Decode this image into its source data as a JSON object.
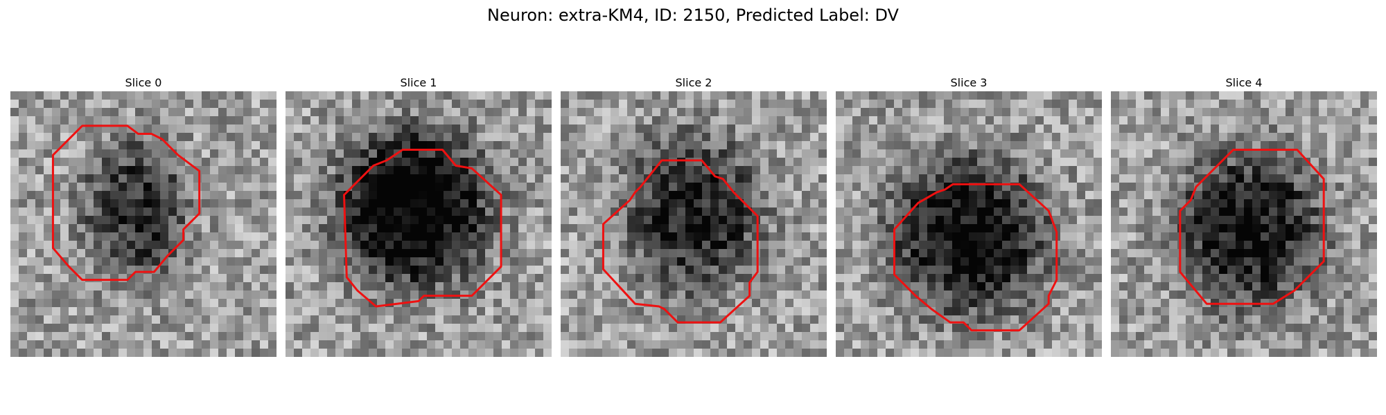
{
  "figure": {
    "title": "Neuron: extra-KM4, ID: 2150, Predicted Label: DV"
  },
  "contour_color": "#ee1111",
  "panels": [
    {
      "title": "Slice 0",
      "dark_center": [
        0.47,
        0.45
      ],
      "dark_radius": [
        0.2,
        0.27
      ],
      "darkness": 0.45,
      "seed": 11,
      "contour": [
        [
          0.27,
          0.13
        ],
        [
          0.44,
          0.13
        ],
        [
          0.48,
          0.16
        ],
        [
          0.53,
          0.16
        ],
        [
          0.57,
          0.18
        ],
        [
          0.63,
          0.24
        ],
        [
          0.71,
          0.3
        ],
        [
          0.71,
          0.46
        ],
        [
          0.65,
          0.52
        ],
        [
          0.65,
          0.56
        ],
        [
          0.59,
          0.62
        ],
        [
          0.54,
          0.68
        ],
        [
          0.47,
          0.68
        ],
        [
          0.44,
          0.71
        ],
        [
          0.27,
          0.71
        ],
        [
          0.22,
          0.66
        ],
        [
          0.16,
          0.59
        ],
        [
          0.16,
          0.24
        ]
      ]
    },
    {
      "title": "Slice 1",
      "dark_center": [
        0.48,
        0.44
      ],
      "dark_radius": [
        0.29,
        0.3
      ],
      "darkness": 0.7,
      "seed": 23,
      "contour": [
        [
          0.38,
          0.26
        ],
        [
          0.44,
          0.22
        ],
        [
          0.59,
          0.22
        ],
        [
          0.64,
          0.28
        ],
        [
          0.7,
          0.29
        ],
        [
          0.81,
          0.39
        ],
        [
          0.81,
          0.66
        ],
        [
          0.7,
          0.77
        ],
        [
          0.52,
          0.77
        ],
        [
          0.5,
          0.79
        ],
        [
          0.34,
          0.81
        ],
        [
          0.27,
          0.75
        ],
        [
          0.23,
          0.7
        ],
        [
          0.22,
          0.39
        ],
        [
          0.33,
          0.28
        ]
      ]
    },
    {
      "title": "Slice 2",
      "dark_center": [
        0.5,
        0.46
      ],
      "dark_radius": [
        0.26,
        0.3
      ],
      "darkness": 0.5,
      "seed": 37,
      "contour": [
        [
          0.38,
          0.26
        ],
        [
          0.53,
          0.26
        ],
        [
          0.58,
          0.32
        ],
        [
          0.61,
          0.33
        ],
        [
          0.65,
          0.38
        ],
        [
          0.74,
          0.47
        ],
        [
          0.74,
          0.68
        ],
        [
          0.71,
          0.72
        ],
        [
          0.71,
          0.77
        ],
        [
          0.6,
          0.87
        ],
        [
          0.44,
          0.87
        ],
        [
          0.39,
          0.82
        ],
        [
          0.37,
          0.81
        ],
        [
          0.28,
          0.8
        ],
        [
          0.16,
          0.67
        ],
        [
          0.16,
          0.5
        ],
        [
          0.26,
          0.41
        ],
        [
          0.28,
          0.38
        ],
        [
          0.3,
          0.36
        ]
      ]
    },
    {
      "title": "Slice 3",
      "dark_center": [
        0.5,
        0.54
      ],
      "dark_radius": [
        0.3,
        0.3
      ],
      "darkness": 0.6,
      "seed": 49,
      "contour": [
        [
          0.44,
          0.35
        ],
        [
          0.69,
          0.35
        ],
        [
          0.8,
          0.45
        ],
        [
          0.83,
          0.53
        ],
        [
          0.83,
          0.71
        ],
        [
          0.8,
          0.77
        ],
        [
          0.8,
          0.8
        ],
        [
          0.69,
          0.9
        ],
        [
          0.51,
          0.9
        ],
        [
          0.48,
          0.87
        ],
        [
          0.43,
          0.87
        ],
        [
          0.36,
          0.82
        ],
        [
          0.3,
          0.77
        ],
        [
          0.22,
          0.69
        ],
        [
          0.22,
          0.52
        ],
        [
          0.31,
          0.42
        ],
        [
          0.38,
          0.38
        ],
        [
          0.41,
          0.37
        ]
      ]
    },
    {
      "title": "Slice 4",
      "dark_center": [
        0.52,
        0.52
      ],
      "dark_radius": [
        0.28,
        0.3
      ],
      "darkness": 0.55,
      "seed": 61,
      "contour": [
        [
          0.46,
          0.22
        ],
        [
          0.7,
          0.22
        ],
        [
          0.8,
          0.33
        ],
        [
          0.8,
          0.64
        ],
        [
          0.69,
          0.75
        ],
        [
          0.61,
          0.8
        ],
        [
          0.36,
          0.8
        ],
        [
          0.26,
          0.68
        ],
        [
          0.26,
          0.45
        ],
        [
          0.3,
          0.41
        ],
        [
          0.32,
          0.36
        ]
      ]
    }
  ]
}
